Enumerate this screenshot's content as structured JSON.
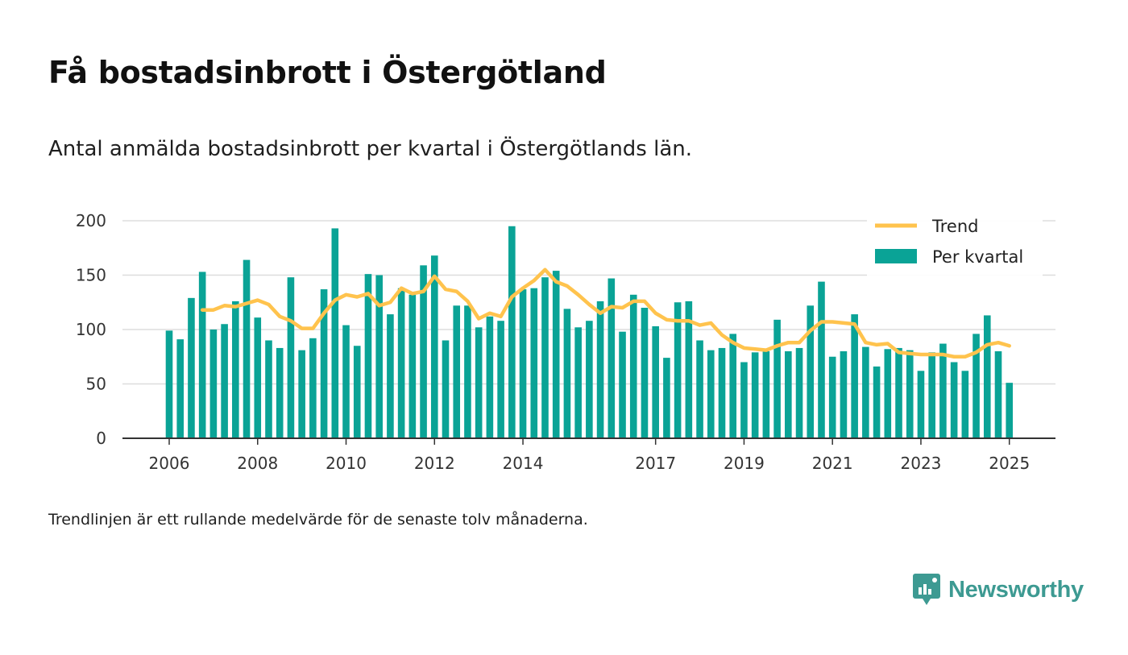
{
  "header": {
    "title": "Få bostadsinbrott i Östergötland",
    "subtitle": "Antal anmälda bostadsinbrott per kvartal i Östergötlands län."
  },
  "footer": {
    "note": "Trendlinjen är ett rullande medelvärde för de senaste tolv månaderna.",
    "brand": "Newsworthy"
  },
  "colors": {
    "bars": "#0aa396",
    "trend": "#ffc34d",
    "grid": "#dddddd",
    "axis": "#333333",
    "brand": "#3d9a92"
  },
  "chart_data": {
    "type": "bar",
    "x_label_years": [
      "2006",
      "2008",
      "2010",
      "2012",
      "2014",
      "2017",
      "2019",
      "2021",
      "2023",
      "2025"
    ],
    "ylim": [
      0,
      200
    ],
    "yticks": [
      0,
      50,
      100,
      150,
      200
    ],
    "grid": true,
    "legend_position": "top-right",
    "categories": [
      "2006 Q1",
      "2006 Q2",
      "2006 Q3",
      "2006 Q4",
      "2007 Q1",
      "2007 Q2",
      "2007 Q3",
      "2007 Q4",
      "2008 Q1",
      "2008 Q2",
      "2008 Q3",
      "2008 Q4",
      "2009 Q1",
      "2009 Q2",
      "2009 Q3",
      "2009 Q4",
      "2010 Q1",
      "2010 Q2",
      "2010 Q3",
      "2010 Q4",
      "2011 Q1",
      "2011 Q2",
      "2011 Q3",
      "2011 Q4",
      "2012 Q1",
      "2012 Q2",
      "2012 Q3",
      "2012 Q4",
      "2013 Q1",
      "2013 Q2",
      "2013 Q3",
      "2013 Q4",
      "2014 Q1",
      "2014 Q2",
      "2014 Q3",
      "2014 Q4",
      "2015 Q1",
      "2015 Q2",
      "2015 Q3",
      "2015 Q4",
      "2016 Q1",
      "2016 Q2",
      "2016 Q3",
      "2016 Q4",
      "2017 Q1",
      "2017 Q2",
      "2017 Q3",
      "2017 Q4",
      "2018 Q1",
      "2018 Q2",
      "2018 Q3",
      "2018 Q4",
      "2019 Q1",
      "2019 Q2",
      "2019 Q3",
      "2019 Q4",
      "2020 Q1",
      "2020 Q2",
      "2020 Q3",
      "2020 Q4",
      "2021 Q1",
      "2021 Q2",
      "2021 Q3",
      "2021 Q4",
      "2022 Q1",
      "2022 Q2",
      "2022 Q3",
      "2022 Q4",
      "2023 Q1",
      "2023 Q2",
      "2023 Q3",
      "2023 Q4",
      "2024 Q1",
      "2024 Q2",
      "2024 Q3",
      "2024 Q4",
      "2025 Q1"
    ],
    "series": [
      {
        "name": "Per kvartal",
        "kind": "bar",
        "values": [
          99,
          91,
          129,
          153,
          100,
          105,
          126,
          164,
          111,
          90,
          83,
          148,
          81,
          92,
          137,
          193,
          104,
          85,
          151,
          150,
          114,
          138,
          132,
          159,
          168,
          90,
          122,
          122,
          102,
          112,
          108,
          195,
          137,
          138,
          148,
          154,
          119,
          102,
          108,
          126,
          147,
          98,
          132,
          120,
          103,
          74,
          125,
          126,
          90,
          81,
          83,
          96,
          70,
          79,
          80,
          109,
          80,
          83,
          122,
          144,
          75,
          80,
          114,
          84,
          66,
          82,
          83,
          81,
          62,
          79,
          87,
          70,
          62,
          96,
          113,
          80,
          51
        ]
      },
      {
        "name": "Trend",
        "kind": "line",
        "values": [
          null,
          null,
          null,
          118,
          118,
          122,
          121,
          124,
          127,
          123,
          112,
          108,
          101,
          101,
          115,
          127,
          132,
          130,
          133,
          122,
          125,
          138,
          133,
          135,
          149,
          137,
          135,
          126,
          110,
          115,
          112,
          130,
          138,
          145,
          155,
          144,
          140,
          132,
          123,
          115,
          121,
          120,
          126,
          126,
          115,
          109,
          108,
          108,
          104,
          106,
          95,
          88,
          83,
          82,
          81,
          85,
          88,
          88,
          99,
          107,
          107,
          106,
          105,
          88,
          86,
          87,
          79,
          78,
          77,
          77,
          77,
          75,
          75,
          79,
          86,
          88,
          85
        ]
      }
    ]
  }
}
